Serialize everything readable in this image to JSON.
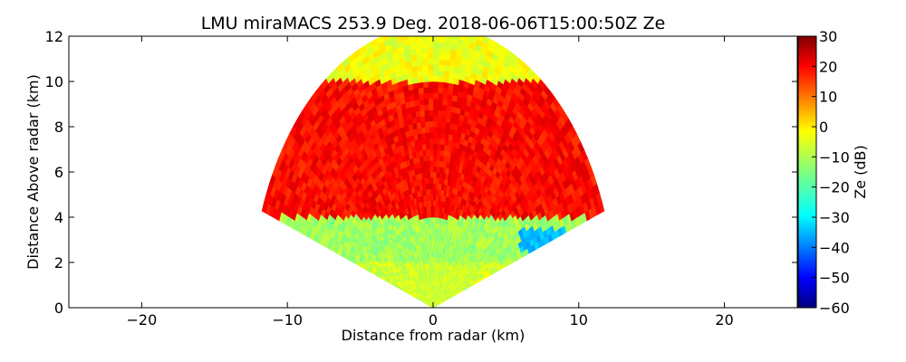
{
  "chart_data": {
    "type": "heatmap",
    "title": "LMU miraMACS 253.9 Deg. 2018-06-06T15:00:50Z  Ze",
    "xlabel": "Distance from radar (km)",
    "ylabel": "Distance Above radar  (km)",
    "xlim": [
      -25,
      25
    ],
    "ylim": [
      0,
      12
    ],
    "xticks": [
      -20,
      -10,
      0,
      10,
      20
    ],
    "yticks": [
      0,
      2,
      4,
      6,
      8,
      10,
      12
    ],
    "colorbar": {
      "label": "Ze (dB)",
      "range": [
        -60,
        30
      ],
      "ticks": [
        30,
        20,
        10,
        0,
        -10,
        -20,
        -30,
        -40,
        -50,
        -60
      ],
      "colormap": "jet"
    },
    "scan": {
      "max_range_km": 12.5,
      "elevation_range_deg": [
        20,
        160
      ],
      "zones": [
        {
          "height_min_km": 0,
          "height_max_km": 2,
          "ze_db": -8
        },
        {
          "height_min_km": 2,
          "height_max_km": 4,
          "ze_db": -12
        },
        {
          "height_min_km": 4,
          "height_max_km": 10,
          "ze_db": 18
        },
        {
          "height_min_km": 10,
          "height_max_km": 12.5,
          "ze_db": -5
        }
      ],
      "low_echo_region": {
        "x_km": [
          6,
          10
        ],
        "height_km": [
          2.5,
          3.5
        ],
        "ze_db": -32
      }
    }
  }
}
